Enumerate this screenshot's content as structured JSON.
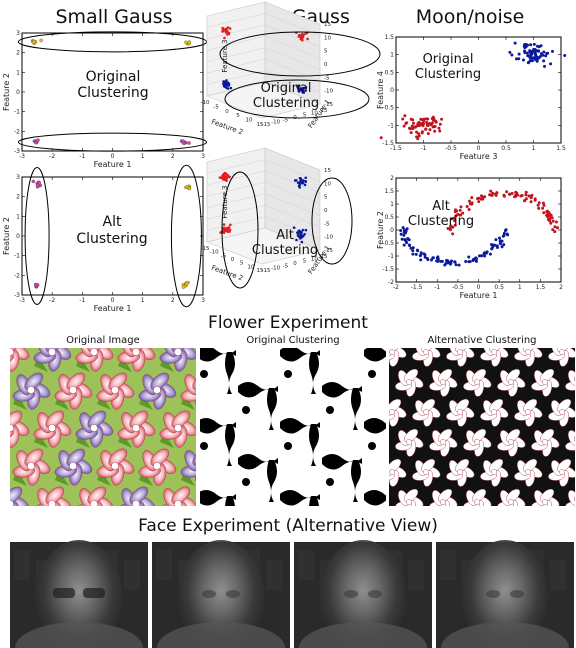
{
  "column_titles": [
    "Small Gauss",
    "Large Gauss",
    "Moon/noise"
  ],
  "annotations": {
    "original": [
      "Original",
      "Clustering"
    ],
    "alt": [
      "Alt",
      "Clustering"
    ]
  },
  "flower": {
    "title": "Flower Experiment",
    "panels": [
      "Original Image",
      "Original Clustering",
      "Alternative Clustering"
    ]
  },
  "face": {
    "title": "Face Experiment (Alternative View)",
    "count": 4
  },
  "colors": {
    "yellow": "#e8c21a",
    "magenta": "#d14bb0",
    "red": "#e02020",
    "blue": "#0a1a9a",
    "dark_red": "#c0141e"
  },
  "chart_data": [
    {
      "type": "scatter",
      "panel": "small-gauss-original",
      "xlabel": "Feature 1",
      "ylabel": "Feature 2",
      "xlim": [
        -3,
        3
      ],
      "ylim": [
        -3,
        3
      ],
      "xticks": [
        -3,
        -2,
        -1,
        0,
        1,
        2,
        3
      ],
      "yticks": [
        -3,
        -2,
        -1,
        0,
        1,
        2,
        3
      ],
      "series": [
        {
          "color": "yellow",
          "points": [
            [
              -2.6,
              2.6
            ],
            [
              2.5,
              2.5
            ]
          ]
        },
        {
          "color": "magenta",
          "points": [
            [
              -2.5,
              -2.5
            ],
            [
              2.4,
              -2.6
            ]
          ]
        }
      ],
      "grouping": "horizontal"
    },
    {
      "type": "scatter",
      "panel": "small-gauss-alt",
      "xlabel": "Feature 1",
      "ylabel": "Feature 2",
      "xlim": [
        -3,
        3
      ],
      "ylim": [
        -3,
        3
      ],
      "xticks": [
        -3,
        -2,
        -1,
        0,
        1,
        2,
        3
      ],
      "yticks": [
        -3,
        -2,
        -1,
        0,
        1,
        2,
        3
      ],
      "series": [
        {
          "color": "magenta",
          "points": [
            [
              -2.5,
              2.6
            ],
            [
              -2.5,
              -2.5
            ]
          ]
        },
        {
          "color": "yellow",
          "points": [
            [
              2.5,
              2.5
            ],
            [
              2.4,
              -2.5
            ]
          ]
        }
      ],
      "grouping": "vertical"
    },
    {
      "type": "scatter3d",
      "panel": "large-gauss-original",
      "xlabel": "Feature 2",
      "ylabel": "Feature 1",
      "zlabel": "Feature 3",
      "xticks": [
        -10,
        -5,
        0,
        5,
        10,
        15
      ],
      "yticks": [
        -15,
        -10,
        -5,
        0,
        5,
        10,
        15
      ],
      "zticks": [
        -15,
        -10,
        -5,
        0,
        5,
        10,
        15
      ],
      "series": [
        {
          "color": "red",
          "points": [
            [
              -10,
              10,
              10
            ],
            [
              10,
              -10,
              10
            ]
          ]
        },
        {
          "color": "blue",
          "points": [
            [
              -10,
              10,
              -10
            ],
            [
              10,
              -10,
              -10
            ]
          ]
        }
      ]
    },
    {
      "type": "scatter3d",
      "panel": "large-gauss-alt",
      "xlabel": "Feature 2",
      "ylabel": "Feature 1",
      "zlabel": "Feature 3",
      "xticks": [
        -15,
        -10,
        -5,
        0,
        5,
        10,
        15
      ],
      "yticks": [
        -15,
        -10,
        -5,
        0,
        5,
        10,
        15
      ],
      "zticks": [
        -15,
        -10,
        -5,
        0,
        5,
        10,
        15
      ],
      "series": [
        {
          "color": "red",
          "points": [
            [
              -10,
              10,
              10
            ],
            [
              -10,
              10,
              -10
            ]
          ]
        },
        {
          "color": "blue",
          "points": [
            [
              10,
              -10,
              10
            ],
            [
              10,
              -10,
              -10
            ]
          ]
        }
      ]
    },
    {
      "type": "scatter",
      "panel": "moon-original",
      "xlabel": "Feature 3",
      "ylabel": "Feature 4",
      "xlim": [
        -1.5,
        1.5
      ],
      "ylim": [
        -1.5,
        1.5
      ],
      "xticks": [
        -1.5,
        -1.0,
        -0.5,
        0.0,
        0.5,
        1.0,
        1.5
      ],
      "yticks": [
        -1.5,
        -1.0,
        -0.5,
        0.0,
        0.5,
        1.0,
        1.5
      ],
      "series": [
        {
          "color": "dark_red",
          "center": [
            -1.0,
            -1.0
          ],
          "spread": 0.18,
          "n": 70
        },
        {
          "color": "blue",
          "center": [
            1.0,
            1.0
          ],
          "spread": 0.18,
          "n": 70
        }
      ]
    },
    {
      "type": "scatter",
      "panel": "moon-alt",
      "xlabel": "Feature 1",
      "ylabel": "Feature 2",
      "xlim": [
        -2.0,
        2.0
      ],
      "ylim": [
        -2.0,
        2.0
      ],
      "xticks": [
        -2.0,
        -1.5,
        -1.0,
        -0.5,
        0.0,
        0.5,
        1.0,
        1.5,
        2.0
      ],
      "yticks": [
        -2.0,
        -1.5,
        -1.0,
        -0.5,
        0.0,
        0.5,
        1.0,
        1.5,
        2.0
      ],
      "series": [
        {
          "color": "blue",
          "shape": "lower-moon",
          "n": 100
        },
        {
          "color": "dark_red",
          "shape": "upper-moon",
          "n": 100
        }
      ]
    }
  ]
}
